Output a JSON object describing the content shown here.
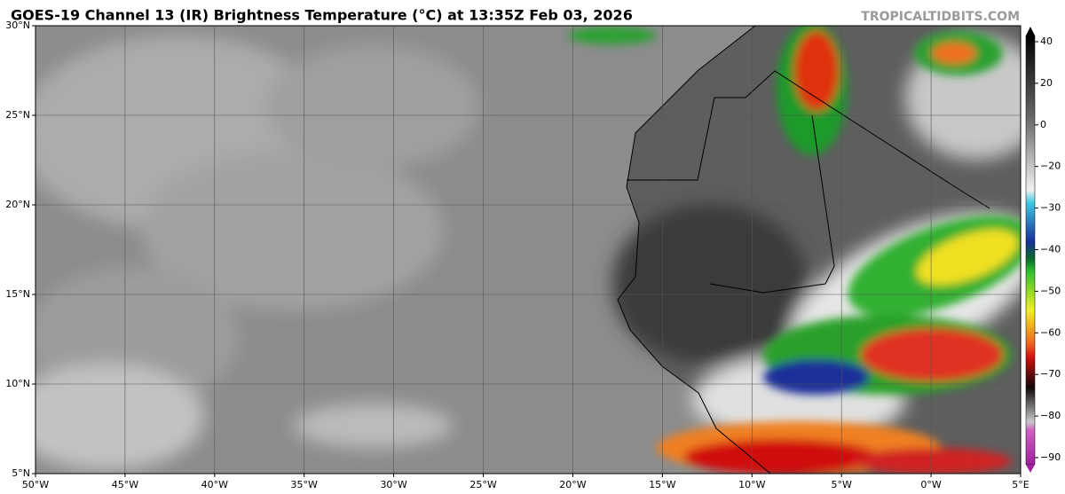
{
  "header": {
    "title": "GOES-19 Channel 13 (IR) Brightness Temperature (°C) at 13:35Z Feb 03, 2026",
    "site": "TROPICALTIDBITS.COM"
  },
  "map": {
    "lon_labels": [
      "50°W",
      "45°W",
      "40°W",
      "35°W",
      "30°W",
      "25°W",
      "20°W",
      "15°W",
      "10°W",
      "5°W",
      "0°W",
      "5°E"
    ],
    "lat_labels": [
      "30°N",
      "25°N",
      "20°N",
      "15°N",
      "10°N",
      "5°N"
    ]
  },
  "colorbar": {
    "ticks": [
      "40",
      "20",
      "0",
      "−20",
      "−30",
      "−40",
      "−50",
      "−60",
      "−70",
      "−80",
      "−90"
    ]
  }
}
